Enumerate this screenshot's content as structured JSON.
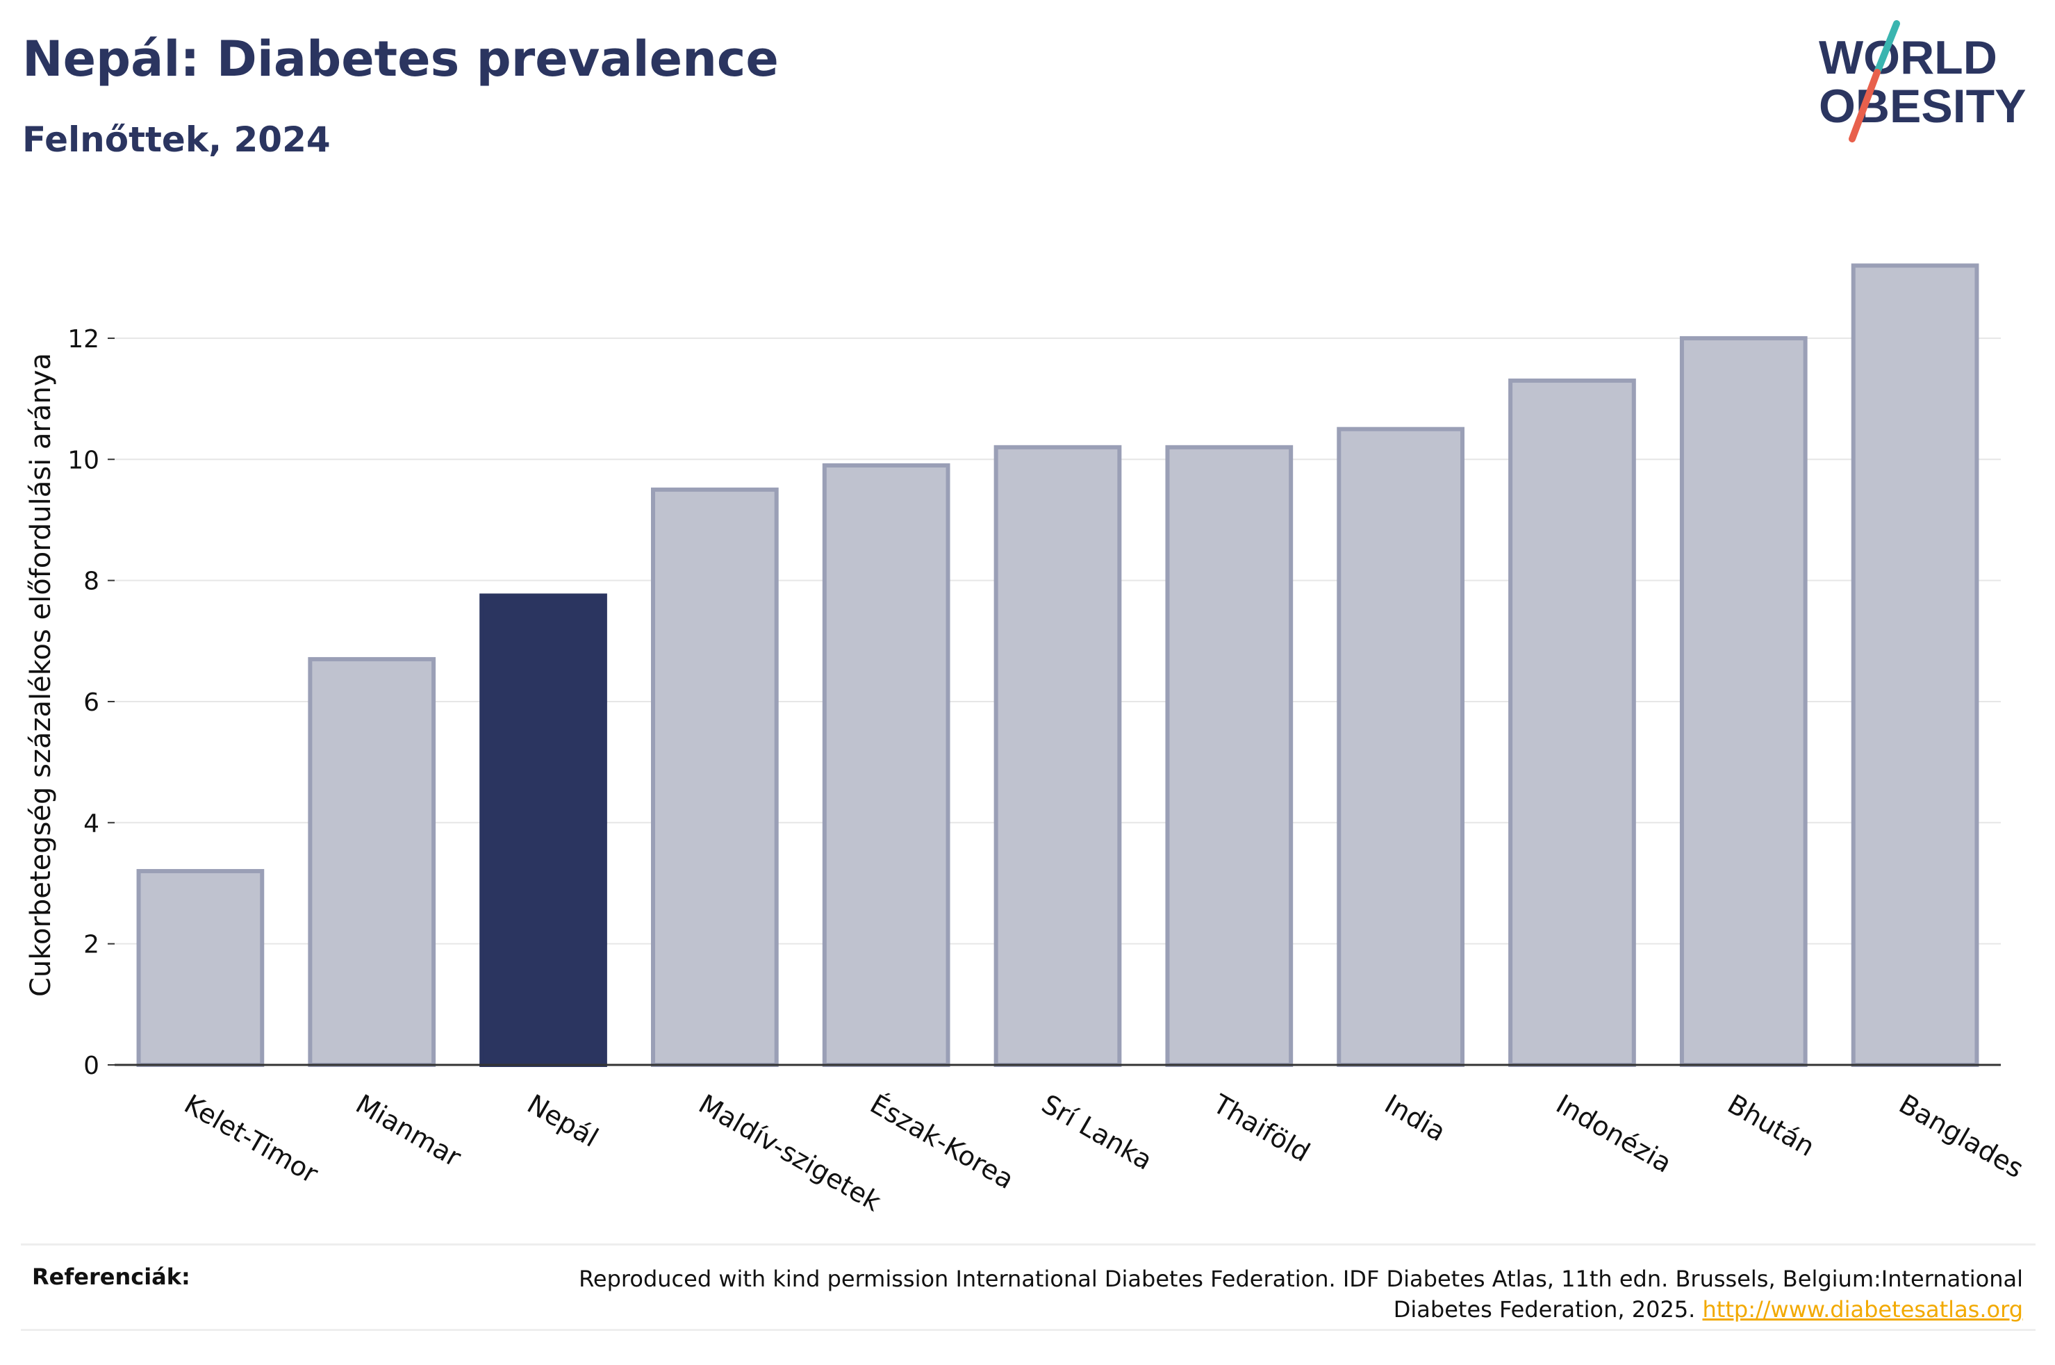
{
  "header": {
    "title": "Nepál: Diabetes prevalence",
    "subtitle": "Felnőttek, 2024"
  },
  "logo": {
    "line1": "WORLD",
    "line2": "OBESITY",
    "slash_colors": [
      "#3ab5b0",
      "#e8604c"
    ]
  },
  "chart_data": {
    "type": "bar",
    "categories": [
      "Kelet-Timor",
      "Mianmar",
      "Nepál",
      "Maldív-szigetek",
      "Észak-Korea",
      "Srí Lanka",
      "Thaiföld",
      "India",
      "Indonézia",
      "Bhután",
      "Banglades"
    ],
    "values": [
      3.2,
      6.7,
      7.75,
      9.5,
      9.9,
      10.2,
      10.2,
      10.5,
      11.3,
      12.0,
      13.2
    ],
    "highlight": "Nepál",
    "ylabel": "Cukorbetegség százalékos előfordulási aránya",
    "xlabel": "",
    "ylim": [
      0,
      13.8
    ],
    "yticks": [
      0,
      2,
      4,
      6,
      8,
      10,
      12
    ],
    "grid": true,
    "colors": {
      "highlight": "#2b3560",
      "other_fill": "#bfc2cf",
      "other_edge": "#9a9fb6"
    }
  },
  "references": {
    "label": "Referenciák:",
    "text": "Reproduced with kind permission International Diabetes Federation. IDF Diabetes Atlas, 11th edn. Brussels, Belgium:International Diabetes Federation, 2025. ",
    "link": "http://www.diabetesatlas.org"
  }
}
